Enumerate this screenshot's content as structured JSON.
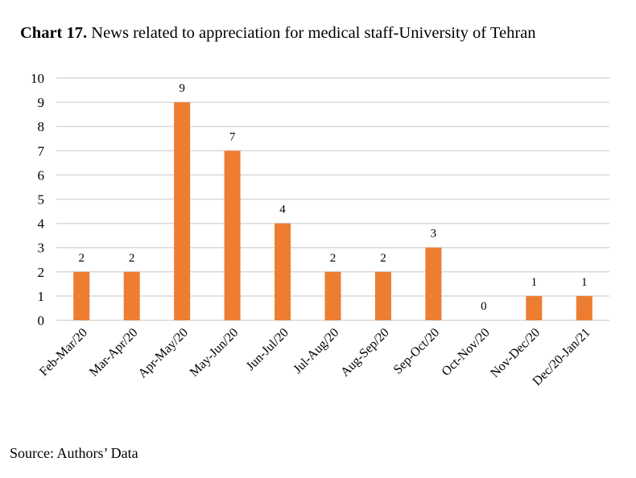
{
  "title": {
    "prefix": "Chart 17.",
    "text": "News related to appreciation for medical staff-University of Tehran"
  },
  "source": "Source: Authors’ Data",
  "colors": {
    "bar": "#ED7D31",
    "grid": "#D9D9D9"
  },
  "chart_data": {
    "type": "bar",
    "title": "Chart 17. News related to appreciation for medical staff-University of Tehran",
    "xlabel": "",
    "ylabel": "",
    "categories": [
      "Feb-Mar/20",
      "Mar-Apr/20",
      "Apr-May/20",
      "May-Jun/20",
      "Jun-Jul/20",
      "Jul-Aug/20",
      "Aug-Sep/20",
      "Sep-Oct/20",
      "Oct-Nov/20",
      "Nov-Dec/20",
      "Dec/20-Jan/21"
    ],
    "values": [
      2,
      2,
      9,
      7,
      4,
      2,
      2,
      3,
      0,
      1,
      1
    ],
    "ylim": [
      0,
      10
    ],
    "yticks": [
      0,
      1,
      2,
      3,
      4,
      5,
      6,
      7,
      8,
      9,
      10
    ],
    "grid": true,
    "legend": "none",
    "data_labels": true
  }
}
